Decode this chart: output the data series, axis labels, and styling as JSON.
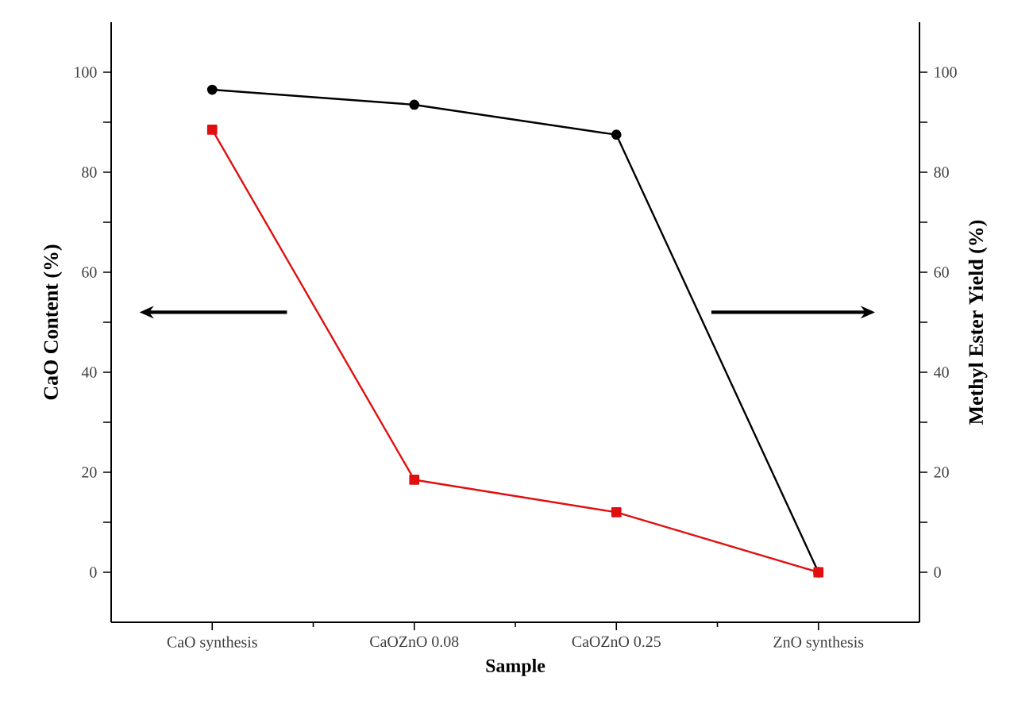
{
  "chart_data": {
    "type": "line",
    "xlabel": "Sample",
    "ylabel": "CaO Content (%)",
    "y2label": "Methyl Ester Yield (%)",
    "categories": [
      "CaO synthesis",
      "CaOZnO 0.08",
      "CaOZnO 0.25",
      "ZnO synthesis"
    ],
    "series": [
      {
        "color": "#000000",
        "marker": "circle",
        "values": [
          96.5,
          93.5,
          87.5,
          0
        ]
      },
      {
        "color": "#e01010",
        "marker": "square",
        "axis": "y2",
        "values": [
          88.5,
          18.5,
          12,
          0
        ]
      }
    ],
    "ylim": [
      -10,
      110
    ],
    "yticks": [
      0,
      {
        "value": 10,
        "label": null
      },
      20,
      {
        "value": 30,
        "label": null
      },
      40,
      {
        "value": 50,
        "label": null
      },
      60,
      {
        "value": 70,
        "label": null
      },
      80,
      {
        "value": 90,
        "label": null
      },
      100
    ],
    "y2lim": [
      -10,
      110
    ],
    "y2ticks": [
      0,
      {
        "value": 10,
        "label": null
      },
      20,
      {
        "value": 30,
        "label": null
      },
      40,
      {
        "value": 50,
        "label": null
      },
      60,
      {
        "value": 70,
        "label": null
      },
      80,
      {
        "value": 90,
        "label": null
      },
      100
    ],
    "grid": false,
    "line_style": "solid"
  }
}
